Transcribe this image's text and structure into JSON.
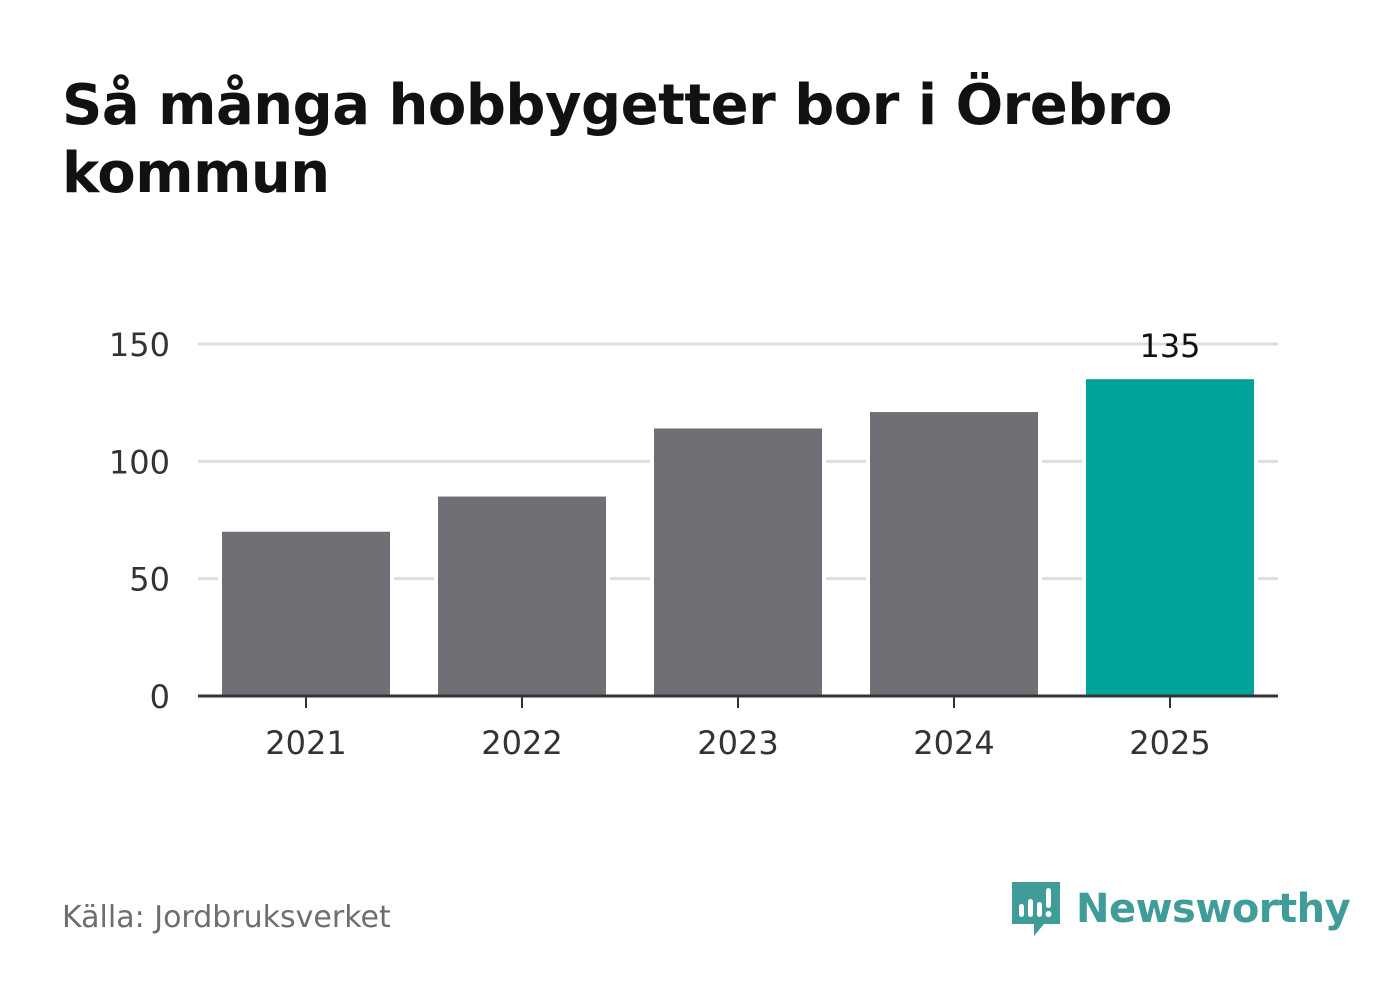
{
  "title": "Så många hobbygetter bor i Örebro kommun",
  "source": "Källa: Jordbruksverket",
  "brand": {
    "name": "Newsworthy",
    "color": "#3f9c98",
    "icon": "newsworthy-logo-icon"
  },
  "colors": {
    "bar": "#706f75",
    "highlight": "#00a39a",
    "grid": "#dedede",
    "axis": "#333333"
  },
  "chart_data": {
    "type": "bar",
    "categories": [
      "2021",
      "2022",
      "2023",
      "2024",
      "2025"
    ],
    "values": [
      70,
      85,
      114,
      121,
      135
    ],
    "highlight_index": 4,
    "data_labels": [
      {
        "index": 4,
        "text": "135"
      }
    ],
    "yticks": [
      0,
      50,
      100,
      150
    ],
    "ylim": [
      0,
      150
    ],
    "xlabel": "",
    "ylabel": "",
    "grid": true
  }
}
